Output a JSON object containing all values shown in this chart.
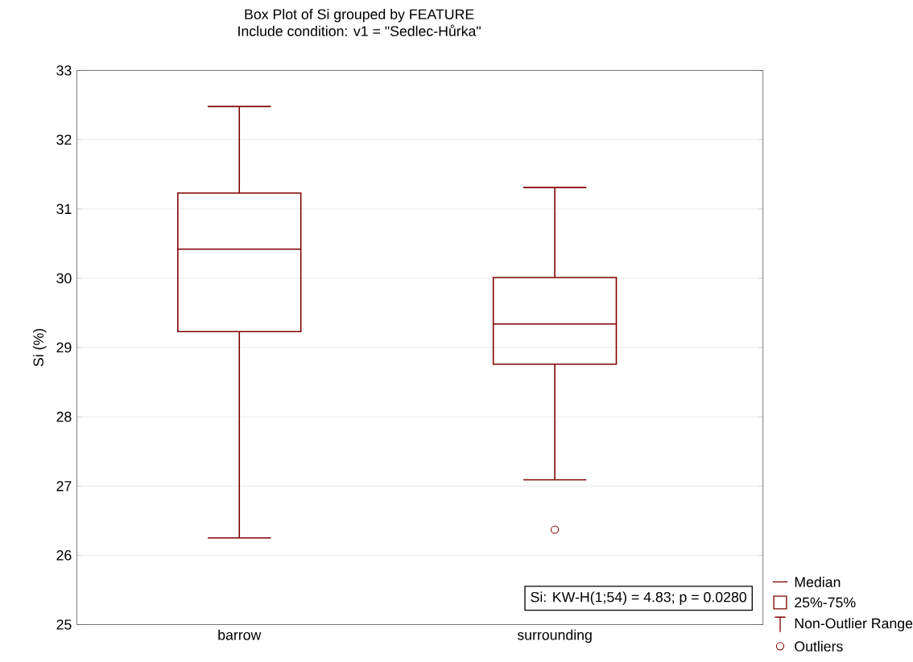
{
  "chart_data": {
    "type": "box",
    "title": "Box Plot of Si grouped by  FEATURE",
    "subtitle": "Include condition: v1 = \"Sedlec-Hůrka\"",
    "ylabel": "Si (%)",
    "categories": [
      "barrow",
      "surrounding"
    ],
    "color": "#800000",
    "boxes": [
      {
        "low": 26.25,
        "q1": 29.23,
        "median": 30.42,
        "q3": 31.23,
        "high": 32.48
      },
      {
        "low": 27.09,
        "q1": 28.76,
        "median": 29.34,
        "q3": 30.01,
        "high": 31.31,
        "outliers": [
          26.37
        ]
      }
    ],
    "ylim": [
      25,
      33
    ],
    "yticks": [
      25,
      26,
      27,
      28,
      29,
      30,
      31,
      32,
      33
    ],
    "grid": "y",
    "annotations": [
      "Si:  KW-H(1;54) = 4.83; p = 0.0280",
      "Median",
      "25%-75%",
      "Non-Outlier Range",
      "Outliers"
    ]
  }
}
